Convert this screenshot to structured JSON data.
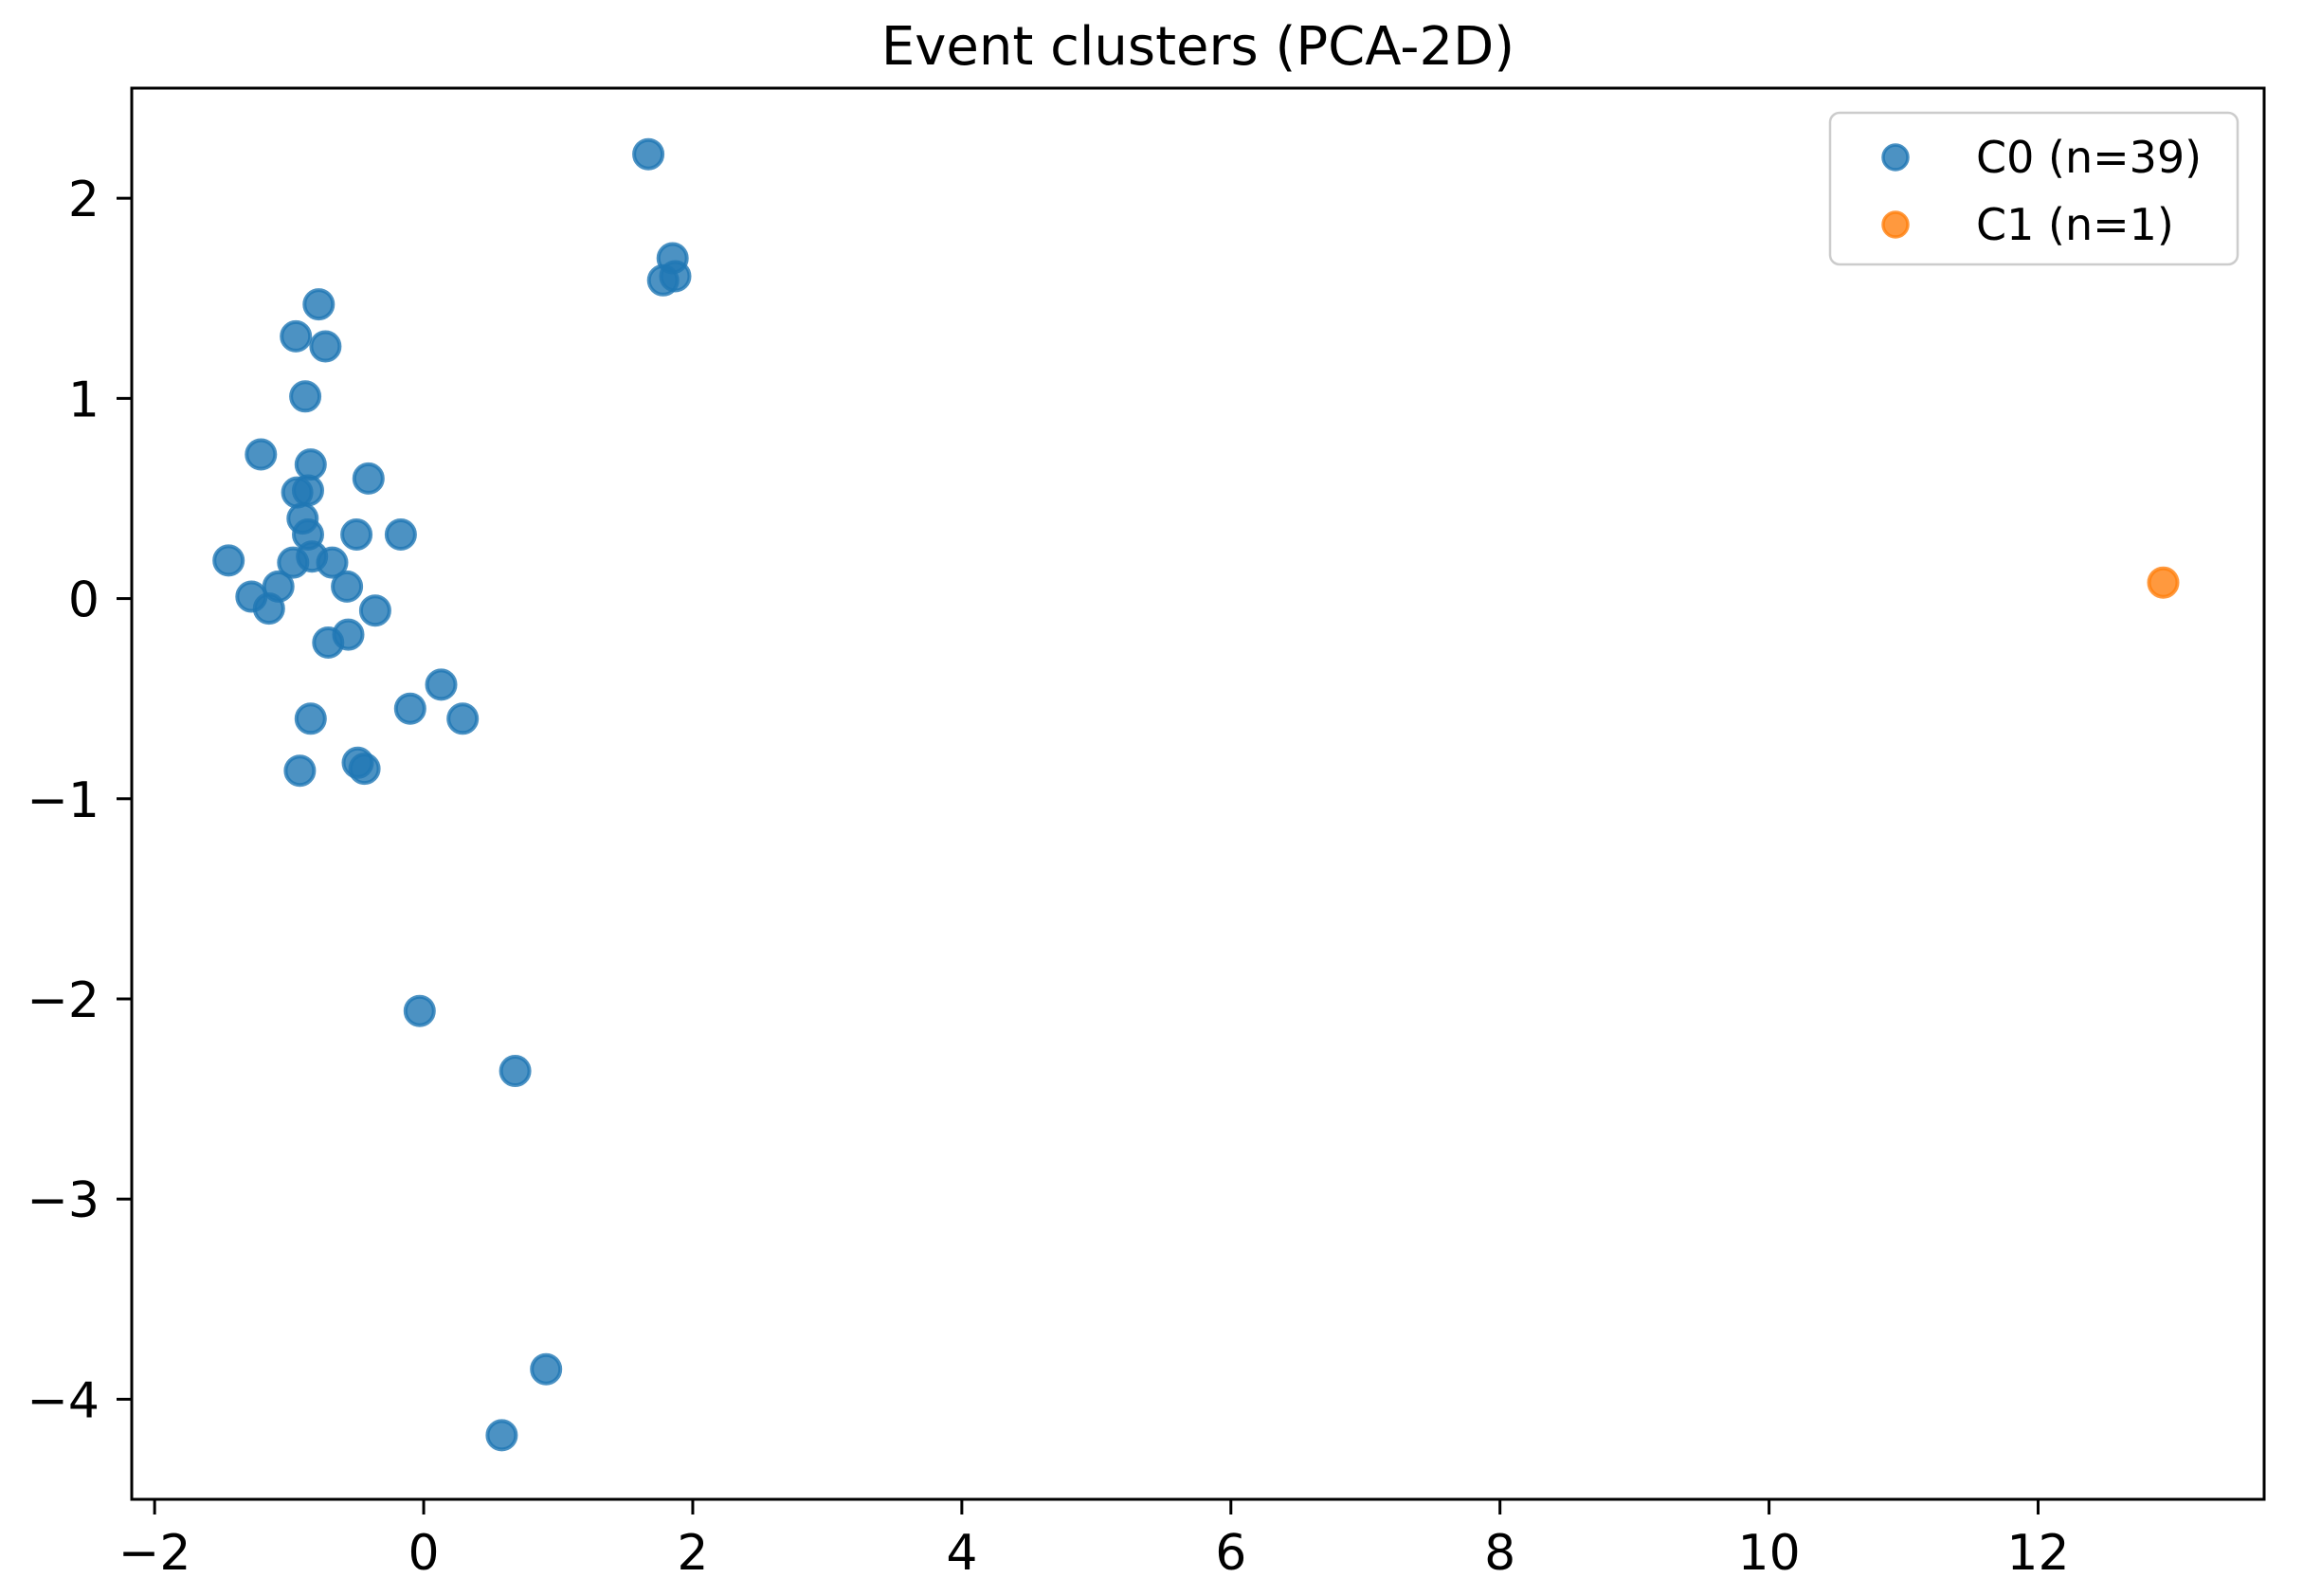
{
  "figure": {
    "title": "Event clusters (PCA-2D)"
  },
  "chart_data": {
    "type": "scatter",
    "title": "Event clusters (PCA-2D)",
    "xlabel": "",
    "ylabel": "",
    "xlim": [
      -2.17,
      13.68
    ],
    "ylim": [
      -4.5,
      2.55
    ],
    "x_ticks": [
      -2,
      0,
      2,
      4,
      6,
      8,
      10,
      12
    ],
    "x_tick_labels": [
      "−2",
      "0",
      "2",
      "4",
      "6",
      "8",
      "10",
      "12"
    ],
    "y_ticks": [
      -4,
      -3,
      -2,
      -1,
      0,
      1,
      2
    ],
    "y_tick_labels": [
      "−4",
      "−3",
      "−2",
      "−1",
      "0",
      "1",
      "2"
    ],
    "grid": false,
    "legend_position": "upper right",
    "marker_alpha": 0.8,
    "series": [
      {
        "name": "C0 (n=39)",
        "color": "#1f77b4",
        "points": [
          [
            1.67,
            2.22
          ],
          [
            1.85,
            1.7
          ],
          [
            1.78,
            1.59
          ],
          [
            1.87,
            1.61
          ],
          [
            -0.78,
            1.47
          ],
          [
            -0.95,
            1.31
          ],
          [
            -0.73,
            1.26
          ],
          [
            -0.88,
            1.01
          ],
          [
            -1.21,
            0.72
          ],
          [
            -0.84,
            0.67
          ],
          [
            -0.41,
            0.6
          ],
          [
            -0.94,
            0.53
          ],
          [
            -0.86,
            0.54
          ],
          [
            -0.9,
            0.4
          ],
          [
            -0.86,
            0.32
          ],
          [
            -0.83,
            0.21
          ],
          [
            -1.45,
            0.19
          ],
          [
            -0.97,
            0.18
          ],
          [
            -0.68,
            0.18
          ],
          [
            -0.5,
            0.32
          ],
          [
            -0.17,
            0.32
          ],
          [
            -1.08,
            0.06
          ],
          [
            -1.28,
            0.01
          ],
          [
            -1.15,
            -0.05
          ],
          [
            -0.57,
            0.06
          ],
          [
            -0.36,
            -0.06
          ],
          [
            -0.71,
            -0.22
          ],
          [
            -0.56,
            -0.18
          ],
          [
            0.13,
            -0.43
          ],
          [
            -0.1,
            -0.55
          ],
          [
            0.29,
            -0.6
          ],
          [
            -0.84,
            -0.6
          ],
          [
            -0.92,
            -0.86
          ],
          [
            -0.49,
            -0.82
          ],
          [
            -0.44,
            -0.85
          ],
          [
            -0.03,
            -2.06
          ],
          [
            0.68,
            -2.36
          ],
          [
            0.91,
            -3.85
          ],
          [
            0.58,
            -4.18
          ]
        ]
      },
      {
        "name": "C1 (n=1)",
        "color": "#ff7f0e",
        "points": [
          [
            12.93,
            0.08
          ]
        ]
      }
    ]
  }
}
